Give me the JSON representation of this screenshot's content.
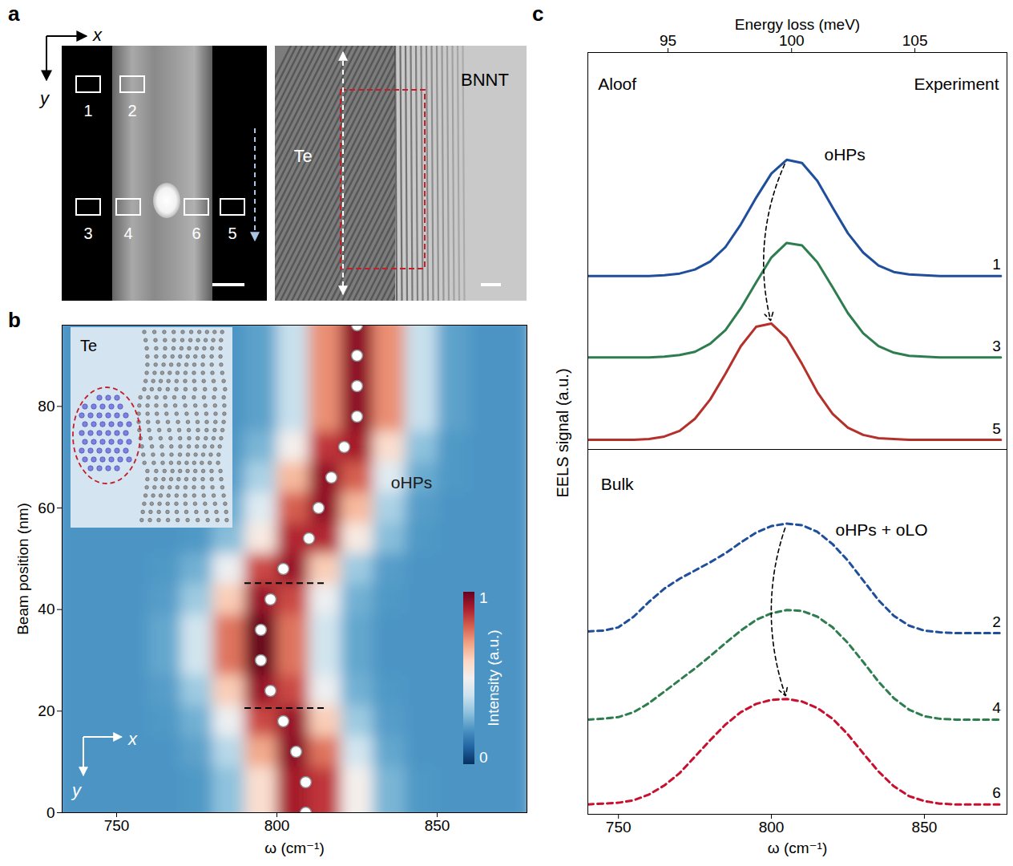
{
  "panel_labels": [
    "a",
    "b",
    "c"
  ],
  "panel_a": {
    "axes": [
      "x",
      "y"
    ],
    "regions": [
      "1",
      "2",
      "3",
      "4",
      "6",
      "5"
    ],
    "materials": [
      "Te",
      "BNNT"
    ]
  },
  "chart_data": [
    {
      "type": "heatmap",
      "xlabel": "ω (cm⁻¹)",
      "ylabel": "Beam position (nm)",
      "xlim": [
        733,
        878
      ],
      "ylim": [
        0,
        96
      ],
      "xticks": [
        750,
        800,
        850
      ],
      "yticks": [
        0,
        20,
        40,
        60,
        80
      ],
      "cells": {
        "x": [
          735,
          745,
          755,
          765,
          775,
          785,
          795,
          805,
          815,
          825,
          835,
          845,
          855,
          865,
          875
        ],
        "y": [
          0,
          6,
          12,
          18,
          24,
          30,
          36,
          42,
          48,
          54,
          60,
          66,
          72,
          78,
          84,
          90,
          96
        ],
        "values": [
          [
            0.2,
            0.2,
            0.2,
            0.2,
            0.21,
            0.3,
            0.58,
            0.91,
            0.86,
            0.51,
            0.27,
            0.21,
            0.2,
            0.2,
            0.2
          ],
          [
            0.2,
            0.2,
            0.2,
            0.2,
            0.21,
            0.3,
            0.58,
            0.91,
            0.86,
            0.51,
            0.27,
            0.21,
            0.2,
            0.2,
            0.2
          ],
          [
            0.2,
            0.2,
            0.2,
            0.2,
            0.23,
            0.36,
            0.69,
            0.95,
            0.77,
            0.41,
            0.24,
            0.2,
            0.2,
            0.2,
            0.2
          ],
          [
            0.2,
            0.2,
            0.2,
            0.21,
            0.26,
            0.48,
            0.83,
            0.93,
            0.62,
            0.32,
            0.22,
            0.2,
            0.2,
            0.2,
            0.2
          ],
          [
            0.2,
            0.2,
            0.2,
            0.22,
            0.32,
            0.62,
            0.93,
            0.83,
            0.48,
            0.26,
            0.21,
            0.2,
            0.2,
            0.2,
            0.2
          ],
          [
            0.2,
            0.2,
            0.2,
            0.24,
            0.41,
            0.77,
            1,
            0.77,
            0.41,
            0.24,
            0.2,
            0.2,
            0.2,
            0.2,
            0.2
          ],
          [
            0.2,
            0.2,
            0.2,
            0.24,
            0.41,
            0.77,
            1,
            0.77,
            0.41,
            0.24,
            0.2,
            0.2,
            0.2,
            0.2,
            0.2
          ],
          [
            0.2,
            0.2,
            0.2,
            0.22,
            0.32,
            0.62,
            0.93,
            0.83,
            0.48,
            0.26,
            0.21,
            0.2,
            0.2,
            0.2,
            0.2
          ],
          [
            0.2,
            0.2,
            0.2,
            0.21,
            0.26,
            0.48,
            0.83,
            0.93,
            0.62,
            0.32,
            0.22,
            0.2,
            0.2,
            0.2,
            0.2
          ],
          [
            0.2,
            0.2,
            0.2,
            0.2,
            0.21,
            0.29,
            0.54,
            0.89,
            0.89,
            0.54,
            0.29,
            0.21,
            0.2,
            0.2,
            0.2
          ],
          [
            0.2,
            0.2,
            0.2,
            0.2,
            0.21,
            0.25,
            0.44,
            0.8,
            0.94,
            0.66,
            0.34,
            0.22,
            0.2,
            0.2,
            0.2
          ],
          [
            0.2,
            0.2,
            0.2,
            0.2,
            0.2,
            0.22,
            0.34,
            0.66,
            0.94,
            0.8,
            0.44,
            0.25,
            0.21,
            0.2,
            0.2
          ],
          [
            0.2,
            0.2,
            0.2,
            0.2,
            0.2,
            0.21,
            0.27,
            0.51,
            0.86,
            0.91,
            0.58,
            0.3,
            0.21,
            0.2,
            0.2
          ],
          [
            0.2,
            0.2,
            0.2,
            0.2,
            0.2,
            0.2,
            0.23,
            0.39,
            0.73,
            0.95,
            0.73,
            0.39,
            0.23,
            0.2,
            0.2
          ],
          [
            0.2,
            0.2,
            0.2,
            0.2,
            0.2,
            0.2,
            0.23,
            0.39,
            0.73,
            0.95,
            0.73,
            0.39,
            0.23,
            0.2,
            0.2
          ],
          [
            0.2,
            0.2,
            0.2,
            0.2,
            0.2,
            0.2,
            0.23,
            0.39,
            0.73,
            0.95,
            0.73,
            0.39,
            0.23,
            0.2,
            0.2
          ],
          [
            0.2,
            0.2,
            0.2,
            0.2,
            0.2,
            0.2,
            0.23,
            0.39,
            0.73,
            0.95,
            0.73,
            0.39,
            0.23,
            0.2,
            0.2
          ]
        ]
      },
      "colorbar": {
        "label": "Intensity (a.u.)",
        "range": [
          0,
          1
        ],
        "ticks": [
          0,
          1
        ]
      },
      "peaks": {
        "x": [
          809,
          809,
          806,
          802,
          798,
          795,
          795,
          798,
          802,
          810,
          813,
          817,
          821,
          825,
          825,
          825,
          825
        ],
        "y": [
          0,
          6,
          12,
          18,
          24,
          30,
          36,
          42,
          48,
          54,
          60,
          66,
          72,
          78,
          84,
          90,
          96
        ],
        "marker": "circle",
        "color": "#ffffff"
      },
      "dashed_lines": [
        {
          "y": 20.6,
          "x1": 790,
          "x2": 815
        },
        {
          "y": 45.2,
          "x1": 790,
          "x2": 815
        }
      ],
      "annotations": [
        {
          "text": "oHPs",
          "x": 842,
          "y": 65
        }
      ],
      "inset_label": "Te",
      "axes_labels": [
        "x",
        "y"
      ]
    },
    {
      "type": "line",
      "ylabel": "EELS signal (a.u.)",
      "x2label": "Energy loss (meV)",
      "x2ticks": [
        {
          "value": 766.2,
          "label": "95"
        },
        {
          "value": 806.6,
          "label": "100"
        },
        {
          "value": 846.9,
          "label": "105"
        }
      ],
      "xlim": [
        740,
        877
      ],
      "ylim": [
        0,
        4.92
      ],
      "tick_labels": "x",
      "x": [
        740,
        745,
        750,
        755,
        760,
        765,
        770,
        775,
        780,
        785,
        790,
        795,
        800,
        805,
        810,
        815,
        820,
        825,
        830,
        835,
        840,
        845,
        850,
        855,
        860,
        865,
        870,
        875
      ],
      "series": [
        {
          "name": "1",
          "color": "#1f4e9c",
          "line_style": "solid",
          "values": [
            2.15,
            2.15,
            2.15,
            2.15,
            2.15,
            2.16,
            2.18,
            2.23,
            2.33,
            2.51,
            2.79,
            3.12,
            3.42,
            3.59,
            3.55,
            3.33,
            3.0,
            2.68,
            2.44,
            2.28,
            2.2,
            2.17,
            2.16,
            2.15,
            2.15,
            2.15,
            2.15,
            2.15
          ]
        },
        {
          "name": "3",
          "color": "#2e7d4f",
          "line_style": "solid",
          "values": [
            1.14,
            1.14,
            1.14,
            1.14,
            1.14,
            1.15,
            1.17,
            1.21,
            1.31,
            1.48,
            1.75,
            2.07,
            2.38,
            2.56,
            2.53,
            2.32,
            2.01,
            1.69,
            1.44,
            1.28,
            1.2,
            1.16,
            1.15,
            1.14,
            1.14,
            1.14,
            1.14,
            1.14
          ]
        },
        {
          "name": "5",
          "color": "#b5302a",
          "line_style": "solid",
          "values": [
            0.12,
            0.12,
            0.12,
            0.12,
            0.13,
            0.16,
            0.23,
            0.38,
            0.62,
            0.94,
            1.28,
            1.52,
            1.56,
            1.38,
            1.06,
            0.71,
            0.44,
            0.27,
            0.18,
            0.14,
            0.13,
            0.12,
            0.12,
            0.12,
            0.12,
            0.12,
            0.12,
            0.12
          ]
        }
      ],
      "annotations": [
        {
          "text": "Aloof",
          "x": 749.6,
          "y": 4.52
        },
        {
          "text": "Experiment",
          "x": 860.5,
          "y": 4.52
        },
        {
          "text": "oHPs",
          "x": 824,
          "y": 3.65
        }
      ]
    },
    {
      "type": "line",
      "xlabel": "ω (cm⁻¹)",
      "xlim": [
        740,
        877
      ],
      "ylim": [
        0,
        4.43
      ],
      "xticks": [
        750,
        800,
        850
      ],
      "tick_labels": "x",
      "x": [
        740,
        745,
        750,
        755,
        760,
        765,
        770,
        775,
        780,
        785,
        790,
        795,
        800,
        805,
        810,
        815,
        820,
        825,
        830,
        835,
        840,
        845,
        850,
        855,
        860,
        865,
        870,
        875
      ],
      "series": [
        {
          "name": "2",
          "color": "#1f4e9c",
          "line_style": "dashed",
          "values": [
            2.22,
            2.23,
            2.27,
            2.4,
            2.58,
            2.74,
            2.86,
            2.96,
            3.06,
            3.17,
            3.3,
            3.42,
            3.5,
            3.53,
            3.51,
            3.43,
            3.28,
            3.08,
            2.84,
            2.6,
            2.41,
            2.29,
            2.23,
            2.21,
            2.2,
            2.2,
            2.2,
            2.2
          ]
        },
        {
          "name": "4",
          "color": "#2e7d4f",
          "line_style": "dashed",
          "values": [
            1.15,
            1.16,
            1.18,
            1.24,
            1.35,
            1.49,
            1.63,
            1.77,
            1.92,
            2.08,
            2.23,
            2.36,
            2.44,
            2.48,
            2.47,
            2.4,
            2.27,
            2.08,
            1.85,
            1.61,
            1.41,
            1.27,
            1.19,
            1.16,
            1.15,
            1.15,
            1.15,
            1.15
          ]
        },
        {
          "name": "6",
          "color": "#c8102e",
          "line_style": "dashed",
          "values": [
            0.12,
            0.13,
            0.14,
            0.17,
            0.24,
            0.35,
            0.5,
            0.7,
            0.9,
            1.09,
            1.24,
            1.34,
            1.39,
            1.4,
            1.37,
            1.29,
            1.16,
            0.97,
            0.74,
            0.52,
            0.34,
            0.22,
            0.16,
            0.13,
            0.12,
            0.12,
            0.12,
            0.12
          ]
        }
      ],
      "annotations": [
        {
          "text": "Bulk",
          "x": 749.6,
          "y": 4.0
        },
        {
          "text": "oHPs + oLO",
          "x": 836,
          "y": 3.45
        }
      ]
    }
  ]
}
